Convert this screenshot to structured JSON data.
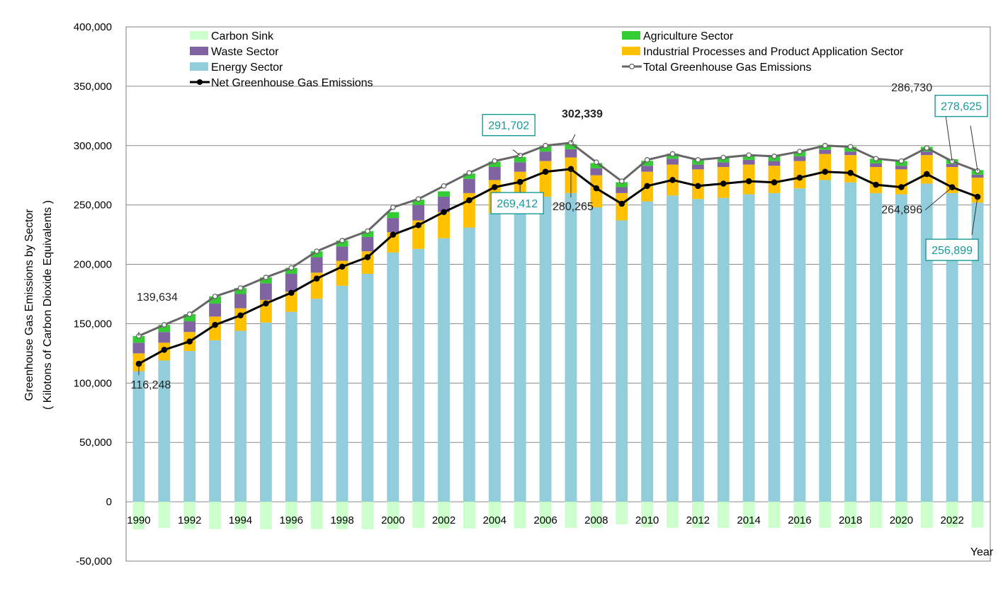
{
  "chart_data": {
    "type": "bar",
    "stacked": true,
    "ylabel_line1": "Greenhouse Gas Emissions by Sector",
    "ylabel_line2": "( Kilotons of Carbon Dioxide Equivalents )",
    "xlabel": "Year",
    "ylim": [
      -50000,
      400000
    ],
    "yticks": [
      -50000,
      0,
      50000,
      100000,
      150000,
      200000,
      250000,
      300000,
      350000,
      400000
    ],
    "ytick_labels": [
      "-50,000",
      "0",
      "50,000",
      "100,000",
      "150,000",
      "200,000",
      "250,000",
      "300,000",
      "350,000",
      "400,000"
    ],
    "grid": "horizontal",
    "legend_position": "top",
    "x": [
      1990,
      1991,
      1992,
      1993,
      1994,
      1995,
      1996,
      1997,
      1998,
      1999,
      2000,
      2001,
      2002,
      2003,
      2004,
      2005,
      2006,
      2007,
      2008,
      2009,
      2010,
      2011,
      2012,
      2013,
      2014,
      2015,
      2016,
      2017,
      2018,
      2019,
      2020,
      2021,
      2022,
      2023
    ],
    "xtick_labels": [
      "1990",
      "1992",
      "1994",
      "1996",
      "1998",
      "2000",
      "2002",
      "2004",
      "2006",
      "2008",
      "2010",
      "2012",
      "2014",
      "2016",
      "2018",
      "2020",
      "2022"
    ],
    "series": [
      {
        "name": "Energy Sector",
        "kind": "bar",
        "color": "#92CDDC",
        "values": [
          110000,
          119000,
          127000,
          136000,
          144000,
          151000,
          160000,
          171000,
          182000,
          192000,
          210000,
          213000,
          222000,
          231000,
          243000,
          250000,
          257000,
          260000,
          248000,
          237000,
          253000,
          258000,
          255000,
          256000,
          259000,
          260000,
          264000,
          271000,
          269000,
          260000,
          259000,
          268000,
          260000,
          252000
        ]
      },
      {
        "name": "Industrial Processes and Product Application Sector",
        "kind": "bar",
        "color": "#FFC000",
        "values": [
          15000,
          15000,
          16000,
          20000,
          19000,
          19000,
          17000,
          22000,
          21000,
          19000,
          17000,
          24000,
          22000,
          29000,
          28000,
          28000,
          30000,
          30000,
          27000,
          23000,
          25000,
          26000,
          25000,
          26000,
          25000,
          23000,
          23000,
          22000,
          23000,
          22000,
          21000,
          24000,
          22000,
          21000
        ]
      },
      {
        "name": "Waste Sector",
        "kind": "bar",
        "color": "#8064A2",
        "values": [
          9000,
          9000,
          9000,
          11000,
          12000,
          14000,
          15000,
          13000,
          12000,
          12000,
          12000,
          13000,
          13000,
          12000,
          11000,
          8000,
          8000,
          7000,
          6000,
          5000,
          5000,
          5000,
          4000,
          4000,
          4000,
          4000,
          4000,
          3500,
          3000,
          3000,
          3000,
          3000,
          2500,
          2500
        ]
      },
      {
        "name": "Agriculture Sector",
        "kind": "bar",
        "color": "#33CC33",
        "values": [
          5634,
          6000,
          6000,
          6000,
          5000,
          5000,
          5000,
          5000,
          5000,
          5000,
          5000,
          4500,
          4500,
          4500,
          4500,
          4500,
          4500,
          4300,
          4300,
          4200,
          4200,
          4200,
          4200,
          4100,
          4100,
          4100,
          4100,
          4100,
          4000,
          4000,
          4000,
          4000,
          4000,
          3900
        ]
      },
      {
        "name": "Carbon Sink",
        "kind": "bar",
        "color": "#CCFFCC",
        "values": [
          -23386,
          -22000,
          -23000,
          -23000,
          -23000,
          -23000,
          -23000,
          -23000,
          -23000,
          -23000,
          -23000,
          -22000,
          -22500,
          -22500,
          -22000,
          -22290,
          -22000,
          -22074,
          -22000,
          -19000,
          -21500,
          -22000,
          -22000,
          -22000,
          -22000,
          -22000,
          -22000,
          -22000,
          -22000,
          -22000,
          -22000,
          -22000,
          -21834,
          -21726
        ]
      },
      {
        "name": "Total Greenhouse Gas Emissions",
        "kind": "line",
        "color": "#666666",
        "values": [
          139634,
          149000,
          158000,
          173000,
          180000,
          189000,
          197000,
          211000,
          220000,
          228000,
          248000,
          255000,
          266000,
          277000,
          287000,
          291702,
          300000,
          302339,
          286000,
          270000,
          288000,
          293000,
          288000,
          290000,
          292000,
          291000,
          295000,
          300000,
          299000,
          289000,
          287000,
          298000,
          286730,
          278625
        ]
      },
      {
        "name": "Net Greenhouse Gas Emissions",
        "kind": "line",
        "color": "#000000",
        "values": [
          116248,
          128000,
          135000,
          149000,
          157000,
          167000,
          176000,
          188000,
          198000,
          206000,
          225000,
          233000,
          244000,
          254000,
          265000,
          269412,
          278000,
          280265,
          264000,
          251000,
          266000,
          271000,
          266000,
          268000,
          270000,
          269000,
          273000,
          278000,
          277000,
          267000,
          265000,
          276000,
          264896,
          256899
        ]
      }
    ],
    "annotations": [
      {
        "text": "139,634",
        "year": 1990,
        "series": "Total Greenhouse Gas Emissions",
        "boxed": false,
        "bold": false,
        "color": "#222222"
      },
      {
        "text": "116,248",
        "year": 1990,
        "series": "Net Greenhouse Gas Emissions",
        "boxed": false,
        "bold": false,
        "color": "#222222"
      },
      {
        "text": "291,702",
        "year": 2005,
        "series": "Total Greenhouse Gas Emissions",
        "boxed": true,
        "bold": false,
        "color": "#17999A"
      },
      {
        "text": "269,412",
        "year": 2005,
        "series": "Net Greenhouse Gas Emissions",
        "boxed": true,
        "bold": false,
        "color": "#17999A"
      },
      {
        "text": "302,339",
        "year": 2007,
        "series": "Total Greenhouse Gas Emissions",
        "boxed": false,
        "bold": true,
        "color": "#222222"
      },
      {
        "text": "280,265",
        "year": 2007,
        "series": "Net Greenhouse Gas Emissions",
        "boxed": false,
        "bold": false,
        "color": "#222222"
      },
      {
        "text": "286,730",
        "year": 2022,
        "series": "Total Greenhouse Gas Emissions",
        "boxed": false,
        "bold": false,
        "color": "#222222"
      },
      {
        "text": "264,896",
        "year": 2022,
        "series": "Net Greenhouse Gas Emissions",
        "boxed": false,
        "bold": false,
        "color": "#222222"
      },
      {
        "text": "278,625",
        "year": 2023,
        "series": "Total Greenhouse Gas Emissions",
        "boxed": true,
        "bold": false,
        "color": "#17999A"
      },
      {
        "text": "256,899",
        "year": 2023,
        "series": "Net Greenhouse Gas Emissions",
        "boxed": true,
        "bold": false,
        "color": "#17999A"
      }
    ],
    "legend": [
      {
        "label": "Carbon Sink",
        "series": "Carbon Sink"
      },
      {
        "label": "Agriculture Sector",
        "series": "Agriculture Sector"
      },
      {
        "label": "Waste Sector",
        "series": "Waste Sector"
      },
      {
        "label": "Industrial Processes and Product Application Sector",
        "series": "Industrial Processes and Product Application Sector"
      },
      {
        "label": "Energy Sector",
        "series": "Energy Sector"
      },
      {
        "label": "Total Greenhouse Gas Emissions",
        "series": "Total Greenhouse Gas Emissions"
      },
      {
        "label": "Net Greenhouse Gas Emissions",
        "series": "Net Greenhouse Gas Emissions"
      }
    ]
  }
}
